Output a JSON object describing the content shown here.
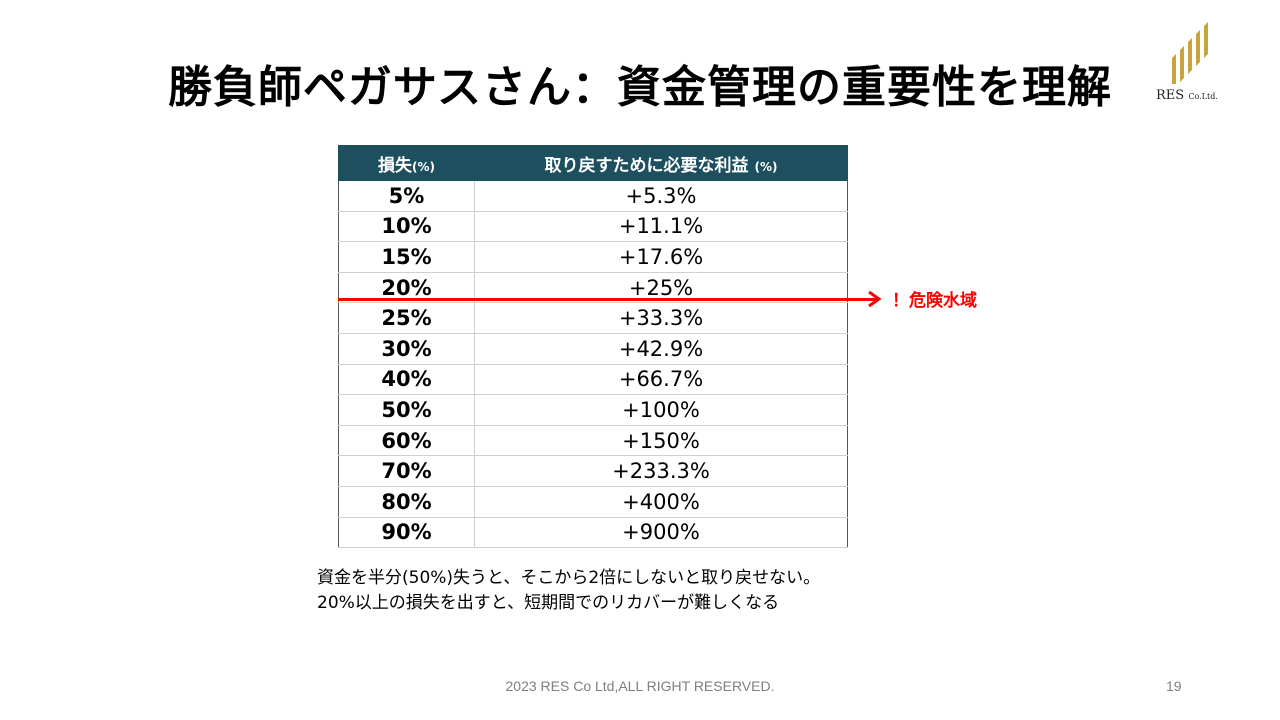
{
  "slide": {
    "title": "勝負師ペガサスさん：資金管理の重要性を理解",
    "logo": {
      "name": "RES",
      "suffix": "Co.Ltd.",
      "color": "#c8a43c"
    },
    "table": {
      "header_loss": "損失",
      "header_loss_unit": "(%)",
      "header_gain": "取り戻すために必要な利益",
      "header_gain_unit": "(%)",
      "header_bg": "#1d4f5f",
      "rows": [
        {
          "loss": "5%",
          "gain": "+5.3%"
        },
        {
          "loss": "10%",
          "gain": "+11.1%"
        },
        {
          "loss": "15%",
          "gain": "+17.6%"
        },
        {
          "loss": "20%",
          "gain": "+25%"
        },
        {
          "loss": "25%",
          "gain": "+33.3%"
        },
        {
          "loss": "30%",
          "gain": "+42.9%"
        },
        {
          "loss": "40%",
          "gain": "+66.7%"
        },
        {
          "loss": "50%",
          "gain": "+100%"
        },
        {
          "loss": "60%",
          "gain": "+150%"
        },
        {
          "loss": "70%",
          "gain": "+233.3%"
        },
        {
          "loss": "80%",
          "gain": "+400%"
        },
        {
          "loss": "90%",
          "gain": "+900%"
        }
      ]
    },
    "danger": {
      "label": "！危険水域",
      "color": "#ff0000"
    },
    "notes": [
      "資金を半分(50%)失うと、そこから2倍にしないと取り戻せない。",
      "20%以上の損失を出すと、短期間でのリカバーが難しくなる"
    ],
    "footer": "2023 RES Co Ltd,ALL RIGHT  RESERVED.",
    "page_number": "19"
  }
}
